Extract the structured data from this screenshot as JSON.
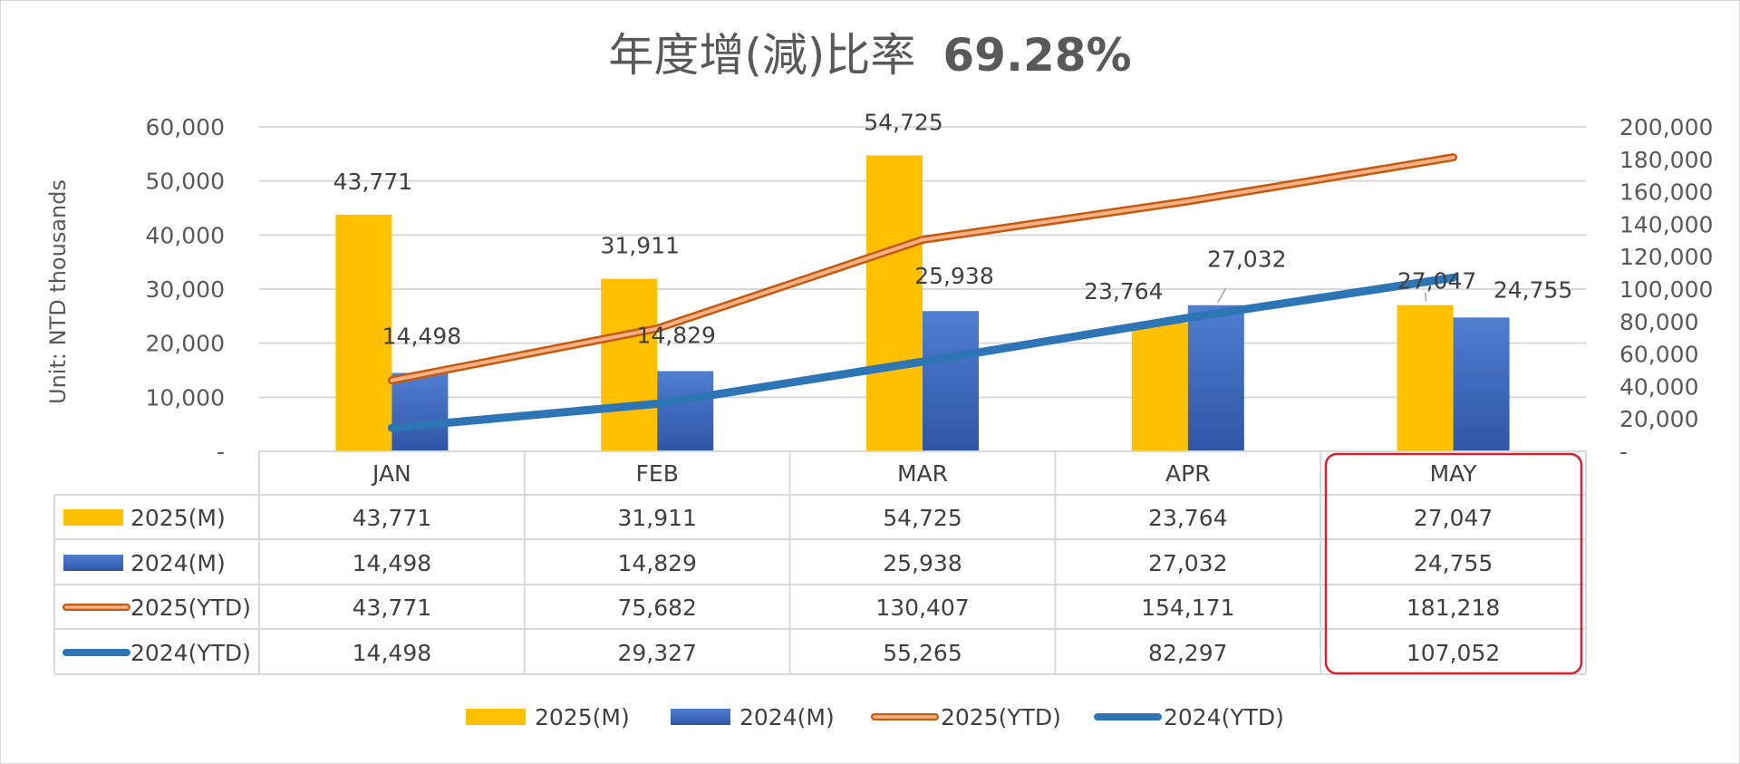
{
  "title": {
    "text": "年度增(減)比率",
    "value": "69.28%"
  },
  "colors": {
    "m2025": "#FFC000",
    "m2024": "#4472C4",
    "ytd2025": "#C55A11",
    "ytd2025_inner": "#F4B183",
    "ytd2024": "#2E75B6",
    "highlight": "#D62031",
    "grid": "#D9D9D9",
    "text": "#595959"
  },
  "chart_data": {
    "type": "bar",
    "combo": "clustered-bar-with-lines-on-secondary-axis",
    "categories": [
      "JAN",
      "FEB",
      "MAR",
      "APR",
      "MAY"
    ],
    "ylabel": "Unit: NTD thousands",
    "ylim": [
      0,
      60000
    ],
    "y_ticks": [
      "-",
      "10,000",
      "20,000",
      "30,000",
      "40,000",
      "50,000",
      "60,000"
    ],
    "y2lim": [
      0,
      200000
    ],
    "y2_ticks": [
      "-",
      "20,000",
      "40,000",
      "60,000",
      "80,000",
      "100,000",
      "120,000",
      "140,000",
      "160,000",
      "180,000",
      "200,000"
    ],
    "grid": true,
    "legend_position": "bottom",
    "highlighted_category": "MAY",
    "series": [
      {
        "name": "2025(M)",
        "type": "bar",
        "axis": "primary",
        "values": [
          43771,
          31911,
          54725,
          23764,
          27047
        ],
        "labels": [
          "43,771",
          "31,911",
          "54,725",
          "23,764",
          "27,047"
        ]
      },
      {
        "name": "2024(M)",
        "type": "bar",
        "axis": "primary",
        "values": [
          14498,
          14829,
          25938,
          27032,
          24755
        ],
        "labels": [
          "14,498",
          "14,829",
          "25,938",
          "27,032",
          "24,755"
        ]
      },
      {
        "name": "2025(YTD)",
        "type": "line",
        "axis": "secondary",
        "values": [
          43771,
          75682,
          130407,
          154171,
          181218
        ],
        "labels": [
          "43,771",
          "75,682",
          "130,407",
          "154,171",
          "181,218"
        ]
      },
      {
        "name": "2024(YTD)",
        "type": "line",
        "axis": "secondary",
        "values": [
          14498,
          29327,
          55265,
          82297,
          107052
        ],
        "labels": [
          "14,498",
          "29,327",
          "55,265",
          "82,297",
          "107,052"
        ]
      }
    ]
  }
}
